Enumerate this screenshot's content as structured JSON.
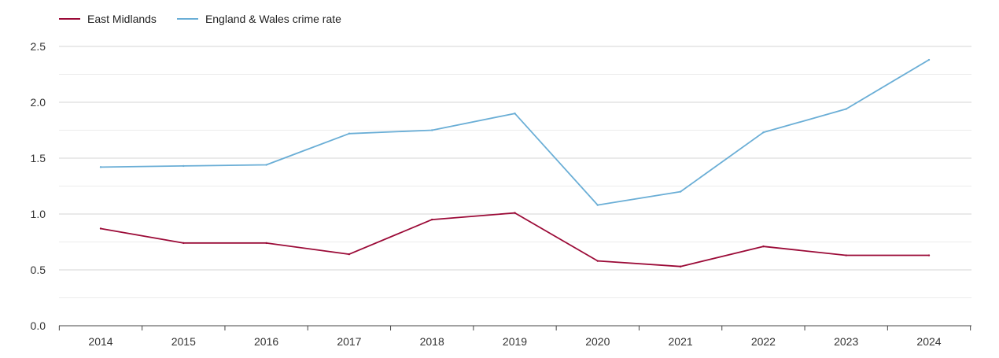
{
  "chart_data": {
    "type": "line",
    "title": "",
    "xlabel": "",
    "ylabel": "",
    "categories": [
      "2014",
      "2015",
      "2016",
      "2017",
      "2018",
      "2019",
      "2020",
      "2021",
      "2022",
      "2023",
      "2024"
    ],
    "ylim": [
      0,
      2.5
    ],
    "yticks": [
      "0.0",
      "0.5",
      "1.0",
      "1.5",
      "2.0",
      "2.5"
    ],
    "ytick_values": [
      0,
      0.5,
      1.0,
      1.5,
      2.0,
      2.5
    ],
    "grid": true,
    "legend_position": "top-left",
    "series": [
      {
        "name": "East Midlands",
        "color": "#9b0a37",
        "values": [
          0.87,
          0.74,
          0.74,
          0.64,
          0.95,
          1.01,
          0.58,
          0.53,
          0.71,
          0.63,
          0.63
        ]
      },
      {
        "name": "England & Wales crime rate",
        "color": "#6aaed6",
        "values": [
          1.42,
          1.43,
          1.44,
          1.72,
          1.75,
          1.9,
          1.08,
          1.2,
          1.73,
          1.94,
          2.38
        ]
      }
    ]
  }
}
